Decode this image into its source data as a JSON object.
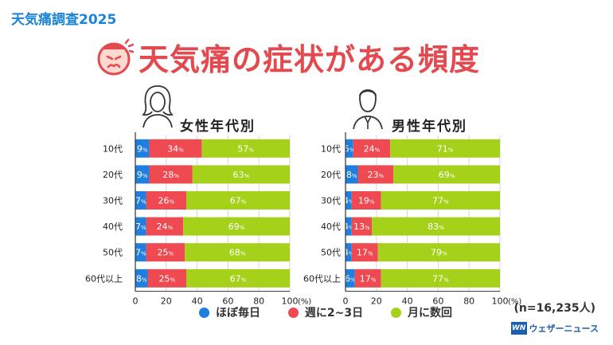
{
  "header": {
    "tag": "天気痛調査2025",
    "title": "天気痛の症状がある頻度"
  },
  "legend": [
    {
      "label": "ほぼ毎日",
      "color": "#1e7fe0"
    },
    {
      "label": "週に2~3日",
      "color": "#ef4a52"
    },
    {
      "label": "月に数回",
      "color": "#a6d11a"
    }
  ],
  "sample": "(n=16,235人)",
  "logo": {
    "mark": "WN",
    "name": "ウェザーニュース"
  },
  "colors": {
    "accent_title": "#e24a50",
    "tag": "#1a84d6"
  },
  "chart_data": [
    {
      "type": "bar",
      "orientation": "horizontal",
      "stacked": true,
      "title": "女性年代別",
      "categories": [
        "10代",
        "20代",
        "30代",
        "40代",
        "50代",
        "60代以上"
      ],
      "series": [
        {
          "name": "ほぼ毎日",
          "values": [
            9,
            9,
            7,
            7,
            7,
            8
          ]
        },
        {
          "name": "週に2~3日",
          "values": [
            34,
            28,
            26,
            24,
            25,
            25
          ]
        },
        {
          "name": "月に数回",
          "values": [
            57,
            63,
            67,
            69,
            68,
            67
          ]
        }
      ],
      "xlim": [
        0,
        100
      ],
      "xticks": [
        0,
        20,
        40,
        60,
        80,
        100
      ],
      "xunit": "(%)",
      "value_suffix": "%"
    },
    {
      "type": "bar",
      "orientation": "horizontal",
      "stacked": true,
      "title": "男性年代別",
      "categories": [
        "10代",
        "20代",
        "30代",
        "40代",
        "50代",
        "60代以上"
      ],
      "series": [
        {
          "name": "ほぼ毎日",
          "values": [
            5,
            8,
            4,
            4,
            4,
            6
          ]
        },
        {
          "name": "週に2~3日",
          "values": [
            24,
            23,
            19,
            13,
            17,
            17
          ]
        },
        {
          "name": "月に数回",
          "values": [
            71,
            69,
            77,
            83,
            79,
            77
          ]
        }
      ],
      "xlim": [
        0,
        100
      ],
      "xticks": [
        0,
        20,
        40,
        60,
        80,
        100
      ],
      "xunit": "(%)",
      "value_suffix": "%"
    }
  ]
}
